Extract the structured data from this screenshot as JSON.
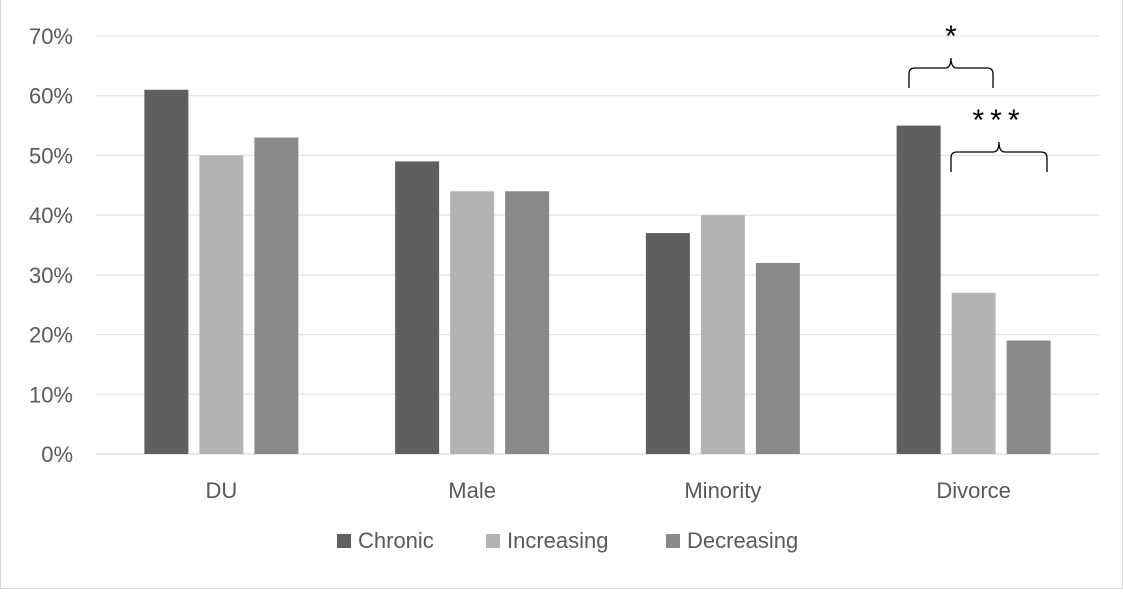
{
  "chart_data": {
    "type": "bar",
    "categories": [
      "DU",
      "Male",
      "Minority",
      "Divorce"
    ],
    "series": [
      {
        "name": "Chronic",
        "color": "#5f5f5f",
        "values": [
          0.61,
          0.49,
          0.37,
          0.55
        ]
      },
      {
        "name": "Increasing",
        "color": "#b3b3b3",
        "values": [
          0.5,
          0.44,
          0.4,
          0.27
        ]
      },
      {
        "name": "Decreasing",
        "color": "#8a8a8a",
        "values": [
          0.53,
          0.44,
          0.32,
          0.19
        ]
      }
    ],
    "ylim": [
      0,
      0.7
    ],
    "ytick_step": 0.1,
    "ytick_labels": [
      "0%",
      "10%",
      "20%",
      "30%",
      "40%",
      "50%",
      "60%",
      "70%"
    ],
    "grid": true,
    "legend_position": "bottom",
    "annotations": [
      {
        "category": "Divorce",
        "from_series": "Chronic",
        "to_series": "Increasing",
        "label": "*"
      },
      {
        "category": "Divorce",
        "from_series": "Increasing",
        "to_series": "Decreasing",
        "label": "***"
      }
    ]
  }
}
